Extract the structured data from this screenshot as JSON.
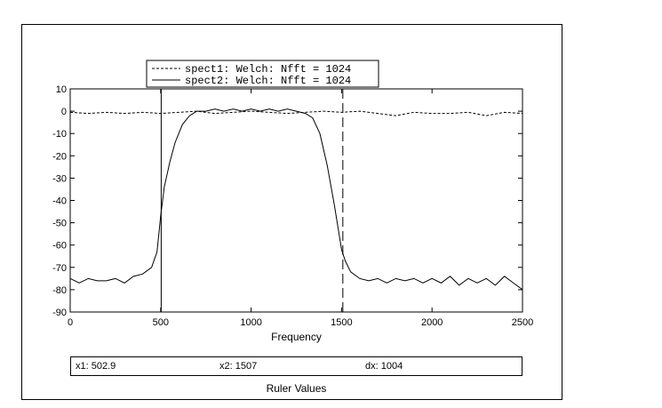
{
  "chart_data": {
    "type": "line",
    "title": "",
    "xlabel": "Frequency",
    "ylabel": "",
    "xlim": [
      0,
      2500
    ],
    "ylim": [
      -90,
      10
    ],
    "xticks": [
      0,
      500,
      1000,
      1500,
      2000,
      2500
    ],
    "yticks": [
      10,
      0,
      -10,
      -20,
      -30,
      -40,
      -50,
      -60,
      -70,
      -80,
      -90
    ],
    "grid": false,
    "legend_position": "top-left",
    "series": [
      {
        "name": "spect1: Welch: Nfft = 1024",
        "style": "dashed",
        "color": "#000000",
        "x": [
          0,
          100,
          200,
          300,
          400,
          500,
          600,
          700,
          800,
          900,
          1000,
          1100,
          1200,
          1300,
          1400,
          1500,
          1600,
          1700,
          1800,
          1900,
          2000,
          2100,
          2200,
          2300,
          2400,
          2500
        ],
        "y": [
          -0.5,
          -1,
          -0.5,
          -1,
          -0.5,
          -1,
          -0.5,
          0,
          -1,
          -0.5,
          0,
          -0.5,
          -1,
          -0.5,
          0,
          -0.5,
          0,
          -1,
          -2,
          -0.5,
          -1,
          -1,
          -0.5,
          -2,
          -0.5,
          -1
        ]
      },
      {
        "name": "spect2: Welch: Nfft = 1024",
        "style": "solid",
        "color": "#000000",
        "x": [
          0,
          50,
          100,
          150,
          200,
          250,
          300,
          350,
          400,
          450,
          480,
          500,
          520,
          550,
          580,
          620,
          660,
          700,
          750,
          800,
          850,
          900,
          950,
          1000,
          1050,
          1100,
          1150,
          1200,
          1250,
          1300,
          1340,
          1380,
          1420,
          1460,
          1500,
          1520,
          1550,
          1600,
          1650,
          1700,
          1750,
          1800,
          1850,
          1900,
          1950,
          2000,
          2050,
          2100,
          2150,
          2200,
          2250,
          2300,
          2350,
          2400,
          2450,
          2500
        ],
        "y": [
          -75,
          -77,
          -75,
          -76,
          -76,
          -75,
          -77,
          -74,
          -73,
          -70,
          -63,
          -47,
          -34,
          -23,
          -14,
          -6,
          -2,
          0,
          0,
          1,
          0,
          1,
          0,
          1,
          0,
          1,
          0,
          1,
          0,
          -1,
          -3,
          -10,
          -24,
          -42,
          -62,
          -67,
          -72,
          -75,
          -76,
          -75,
          -77,
          -75,
          -76,
          -75,
          -77,
          -75,
          -77,
          -74,
          -78,
          -75,
          -77,
          -75,
          -78,
          -74,
          -77,
          -80
        ]
      }
    ]
  },
  "cursors": {
    "x1": {
      "value": 502.9,
      "style": "solid"
    },
    "x2": {
      "value": 1507,
      "style": "dashed"
    }
  },
  "ruler": {
    "x1": "x1: 502.9",
    "x2": "x2: 1507",
    "dx": "dx: 1004",
    "title": "Ruler Values"
  }
}
